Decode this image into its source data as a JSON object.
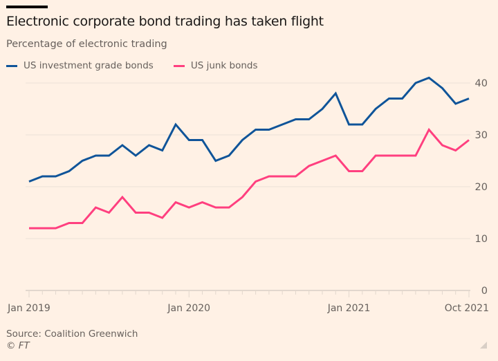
{
  "header": {
    "title": "Electronic corporate bond trading has taken flight",
    "subtitle": "Percentage of electronic trading"
  },
  "footer": {
    "source": "Source: Coalition Greenwich",
    "copyright": "© FT"
  },
  "colors": {
    "background": "#fff1e5",
    "investment_grade": "#0f5499",
    "junk": "#ff3f7f",
    "grid": "#ebe1d8",
    "axis_text": "#66605c"
  },
  "chart_data": {
    "type": "line",
    "title": "Electronic corporate bond trading has taken flight",
    "subtitle": "Percentage of electronic trading",
    "xlabel": "",
    "ylabel": "",
    "ylim": [
      0,
      40
    ],
    "y_ticks": [
      0,
      10,
      20,
      30,
      40
    ],
    "y_tick_labels": [
      "0",
      "10",
      "20",
      "30",
      "40"
    ],
    "y_axis_side": "right",
    "grid": true,
    "legend_position": "top-left",
    "x_start": "Jan 2019",
    "x_end": "Oct 2021",
    "x_tick_labels": [
      {
        "label": "Jan 2019",
        "index": 0
      },
      {
        "label": "Jan 2020",
        "index": 12
      },
      {
        "label": "Jan 2021",
        "index": 24
      },
      {
        "label": "Oct 2021",
        "index": 33
      }
    ],
    "x": [
      "2019-01",
      "2019-02",
      "2019-03",
      "2019-04",
      "2019-05",
      "2019-06",
      "2019-07",
      "2019-08",
      "2019-09",
      "2019-10",
      "2019-11",
      "2019-12",
      "2020-01",
      "2020-02",
      "2020-03",
      "2020-04",
      "2020-05",
      "2020-06",
      "2020-07",
      "2020-08",
      "2020-09",
      "2020-10",
      "2020-11",
      "2020-12",
      "2021-01",
      "2021-02",
      "2021-03",
      "2021-04",
      "2021-05",
      "2021-06",
      "2021-07",
      "2021-08",
      "2021-09",
      "2021-10"
    ],
    "series": [
      {
        "name": "US investment grade bonds",
        "color": "#0f5499",
        "values": [
          21,
          22,
          22,
          23,
          25,
          26,
          26,
          28,
          26,
          28,
          27,
          32,
          29,
          29,
          25,
          26,
          29,
          31,
          31,
          32,
          33,
          33,
          35,
          38,
          32,
          32,
          35,
          37,
          37,
          40,
          41,
          39,
          36,
          37
        ]
      },
      {
        "name": "US junk bonds",
        "color": "#ff3f7f",
        "values": [
          12,
          12,
          12,
          13,
          13,
          16,
          15,
          18,
          15,
          15,
          14,
          17,
          16,
          17,
          16,
          16,
          18,
          21,
          22,
          22,
          22,
          24,
          25,
          26,
          23,
          23,
          26,
          26,
          26,
          26,
          31,
          28,
          27,
          29
        ]
      }
    ]
  }
}
